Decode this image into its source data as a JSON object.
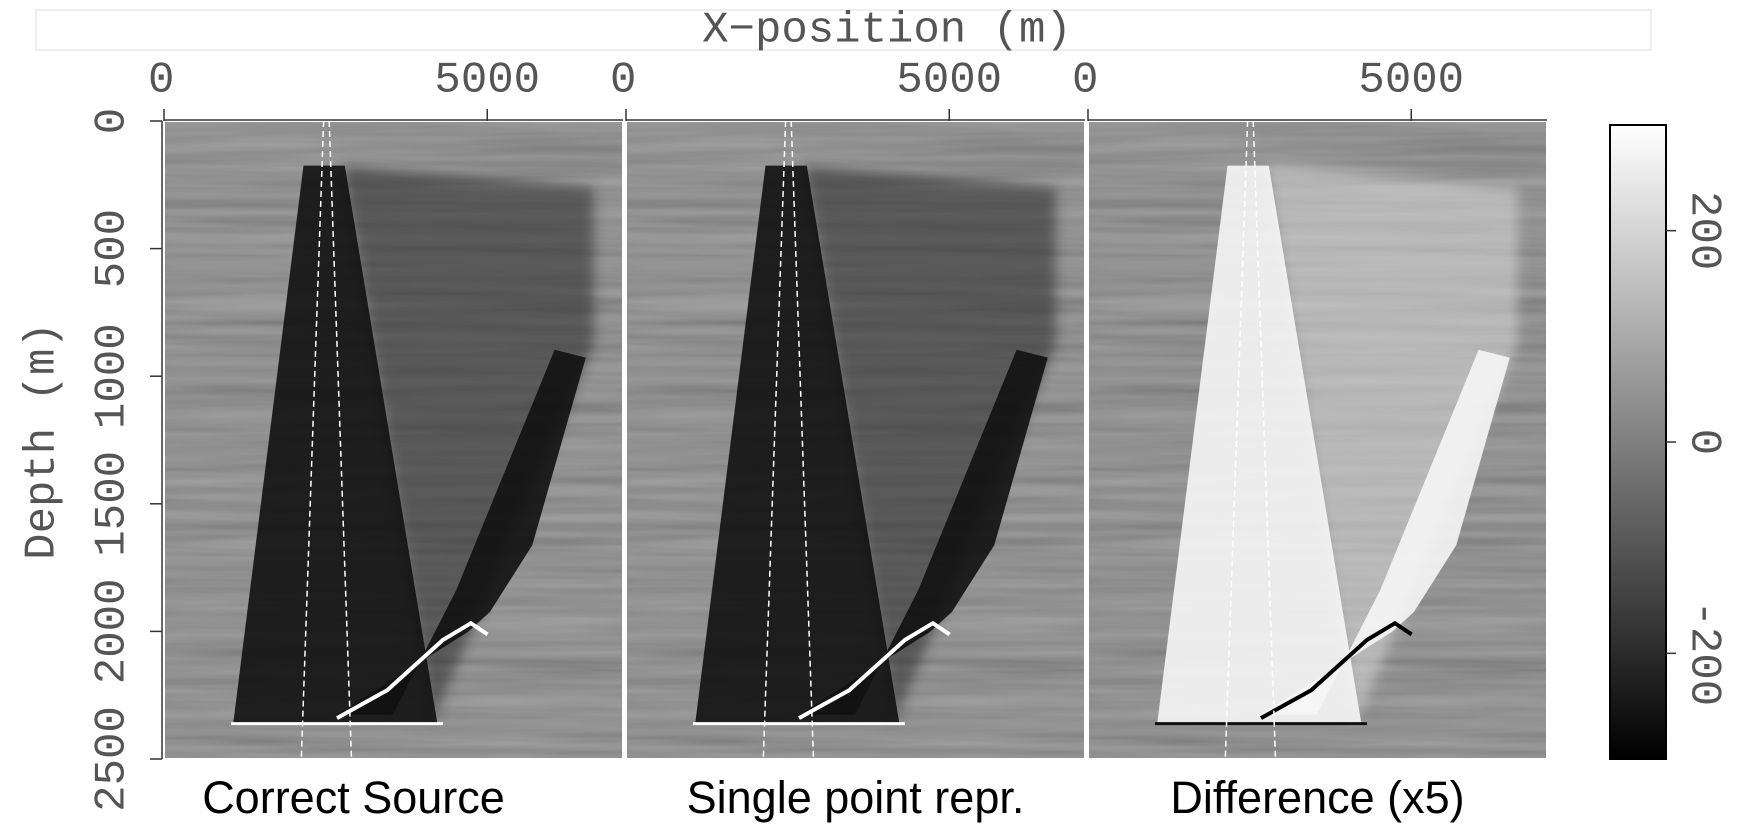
{
  "chart_data": {
    "type": "image",
    "xlabel": "X−position (m)",
    "ylabel": "Depth (m)",
    "panels": [
      {
        "title": "Correct Source"
      },
      {
        "title": "Single point repr."
      },
      {
        "title": "Difference (x5)"
      }
    ],
    "xlim": [
      0,
      7100
    ],
    "xticks": [
      0,
      5000
    ],
    "ylim": [
      0,
      2500
    ],
    "yticks": [
      0,
      500,
      1000,
      1500,
      2000,
      2500
    ],
    "colorbar": {
      "clim": [
        -300,
        300
      ],
      "ticks": [
        -200,
        0,
        200
      ]
    }
  }
}
